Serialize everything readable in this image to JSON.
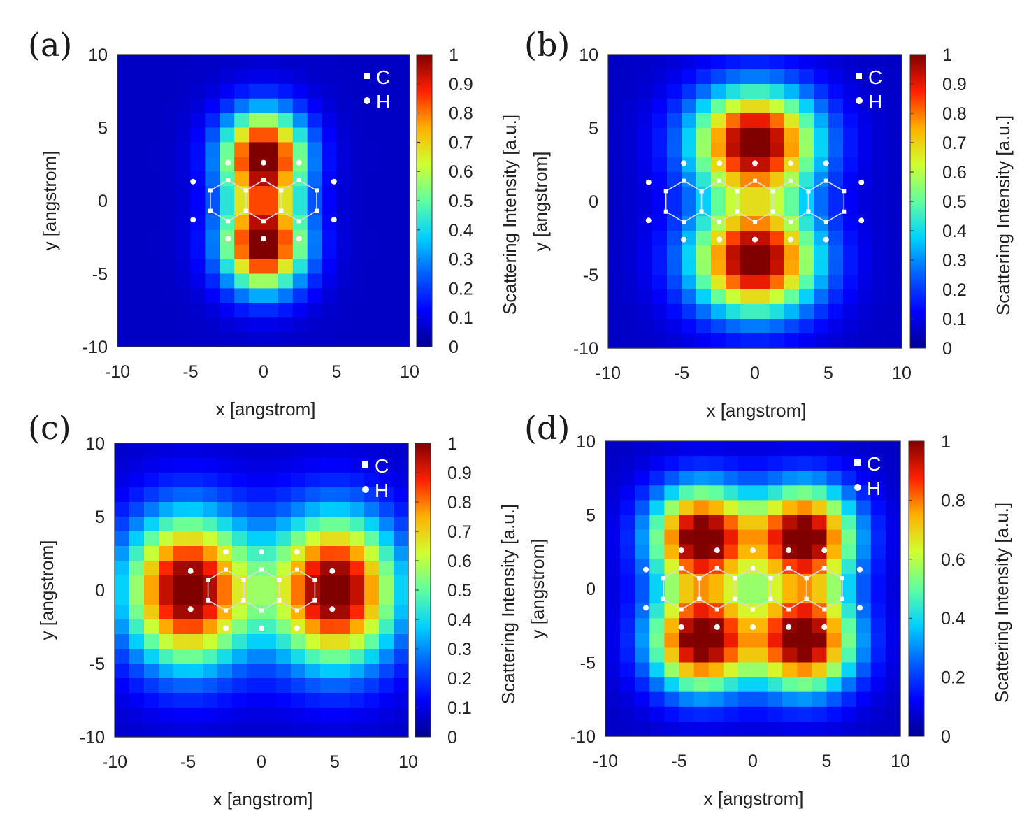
{
  "figure": {
    "x_label": "x [angstrom]",
    "y_label": "y [angstrom]",
    "colorbar_label": "Scattering Intensity [a.u.]",
    "legend": [
      {
        "symbol": "square",
        "label": "C"
      },
      {
        "symbol": "circle",
        "label": "H"
      }
    ],
    "colormap": [
      "#00008f",
      "#0000ff",
      "#0080ff",
      "#00ffff",
      "#80ff80",
      "#ffff00",
      "#ff8000",
      "#ff0000",
      "#800000"
    ]
  },
  "chart_data": [
    {
      "type": "heatmap",
      "panel": "(a)",
      "xlabel": "x [angstrom]",
      "ylabel": "y [angstrom]",
      "xlim": [
        -10,
        10
      ],
      "ylim": [
        -10,
        10
      ],
      "x_ticks": [
        "-10",
        "-5",
        "0",
        "5",
        "10"
      ],
      "y_ticks": [
        "10",
        "5",
        "0",
        "-5",
        "-10"
      ],
      "grid_cells": 20,
      "molecule": "anthracene",
      "peaks": [
        {
          "x": 0,
          "y": 3,
          "sx": 2.0,
          "sy": 2.2,
          "a": 1.0
        },
        {
          "x": 0,
          "y": -3,
          "sx": 2.0,
          "sy": 2.2,
          "a": 1.0
        }
      ],
      "colorbar": {
        "range": [
          0,
          1
        ],
        "ticks": [
          "1",
          "0.9",
          "0.8",
          "0.7",
          "0.6",
          "0.5",
          "0.4",
          "0.3",
          "0.2",
          "0.1",
          "0"
        ],
        "label": "Scattering Intensity [a.u.]"
      },
      "legend": [
        "C",
        "H"
      ]
    },
    {
      "type": "heatmap",
      "panel": "(b)",
      "xlabel": "x [angstrom]",
      "ylabel": "y [angstrom]",
      "xlim": [
        -10,
        10
      ],
      "ylim": [
        -10,
        10
      ],
      "x_ticks": [
        "-10",
        "-5",
        "0",
        "5",
        "10"
      ],
      "y_ticks": [
        "10",
        "5",
        "0",
        "-5",
        "-10"
      ],
      "grid_cells": 20,
      "molecule": "pentacene",
      "peaks": [
        {
          "x": 0,
          "y": 4,
          "sx": 3.0,
          "sy": 2.6,
          "a": 1.0
        },
        {
          "x": 0,
          "y": -4,
          "sx": 3.0,
          "sy": 2.6,
          "a": 1.0
        }
      ],
      "colorbar": {
        "range": [
          0,
          1
        ],
        "ticks": [
          "1",
          "0.9",
          "0.8",
          "0.7",
          "0.6",
          "0.5",
          "0.4",
          "0.3",
          "0.2",
          "0.1",
          "0"
        ],
        "label": "Scattering Intensity [a.u.]"
      },
      "legend": [
        "C",
        "H"
      ]
    },
    {
      "type": "heatmap",
      "panel": "(c)",
      "xlabel": "x [angstrom]",
      "ylabel": "y [angstrom]",
      "xlim": [
        -10,
        10
      ],
      "ylim": [
        -10,
        10
      ],
      "x_ticks": [
        "-10",
        "-5",
        "0",
        "5",
        "10"
      ],
      "y_ticks": [
        "10",
        "5",
        "0",
        "-5",
        "-10"
      ],
      "grid_cells": 20,
      "molecule": "anthracene",
      "peaks": [
        {
          "x": -5,
          "y": 0,
          "sx": 3.0,
          "sy": 3.6,
          "a": 1.0
        },
        {
          "x": 5,
          "y": 0,
          "sx": 3.0,
          "sy": 3.6,
          "a": 1.0
        }
      ],
      "colorbar": {
        "range": [
          0,
          1
        ],
        "ticks": [
          "1",
          "0.9",
          "0.8",
          "0.7",
          "0.6",
          "0.5",
          "0.4",
          "0.3",
          "0.2",
          "0.1",
          "0"
        ],
        "label": "Scattering Intensity [a.u.]"
      },
      "legend": [
        "C",
        "H"
      ]
    },
    {
      "type": "heatmap",
      "panel": "(d)",
      "xlabel": "x [angstrom]",
      "ylabel": "y [angstrom]",
      "xlim": [
        -10,
        10
      ],
      "ylim": [
        -10,
        10
      ],
      "x_ticks": [
        "-10",
        "-5",
        "0",
        "5",
        "10"
      ],
      "y_ticks": [
        "10",
        "5",
        "0",
        "-5",
        "-10"
      ],
      "grid_cells": 20,
      "molecule": "pentacene",
      "peaks": [
        {
          "x": -3.5,
          "y": 3.5,
          "sx": 2.4,
          "sy": 2.4,
          "a": 1.0
        },
        {
          "x": 3.5,
          "y": 3.5,
          "sx": 2.4,
          "sy": 2.4,
          "a": 1.0
        },
        {
          "x": -3.5,
          "y": -3.5,
          "sx": 2.4,
          "sy": 2.4,
          "a": 1.0
        },
        {
          "x": 3.5,
          "y": -3.5,
          "sx": 2.4,
          "sy": 2.4,
          "a": 1.0
        }
      ],
      "colorbar": {
        "range": [
          0,
          1
        ],
        "ticks": [
          "1",
          "0.8",
          "0.6",
          "0.4",
          "0.2",
          "0"
        ],
        "label": "Scattering Intensity [a.u.]"
      },
      "legend": [
        "C",
        "H"
      ]
    }
  ]
}
